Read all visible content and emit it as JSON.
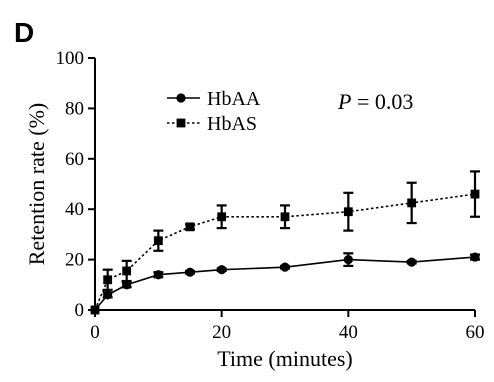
{
  "panel_label": "D",
  "annotation": {
    "italic": "P",
    "rest": " = 0.03"
  },
  "chart_data": {
    "type": "line",
    "title": "",
    "xlabel": "Time (minutes)",
    "ylabel": "Retention rate (%)",
    "xlim": [
      0,
      60
    ],
    "ylim": [
      0,
      100
    ],
    "xticks": [
      "0",
      "20",
      "40",
      "60"
    ],
    "yticks": [
      "0",
      "20",
      "40",
      "60",
      "80",
      "100"
    ],
    "grid": false,
    "legend_position": "top-left",
    "series": [
      {
        "name": "HbAA",
        "marker": "circle",
        "line_style": "solid",
        "color": "#000000",
        "x": [
          0,
          2,
          5,
          10,
          15,
          20,
          30,
          40,
          50,
          60
        ],
        "y": [
          0,
          6,
          10,
          14,
          15,
          16,
          17,
          20,
          19,
          21
        ],
        "error": [
          0,
          1,
          1,
          1,
          0.5,
          0.5,
          0.5,
          2.5,
          0.5,
          1
        ]
      },
      {
        "name": "HbAS",
        "marker": "square",
        "line_style": "dotted",
        "color": "#000000",
        "x": [
          0,
          2,
          5,
          10,
          15,
          20,
          30,
          40,
          50,
          60
        ],
        "y": [
          0,
          12,
          15.5,
          27.5,
          33,
          37,
          37,
          39,
          42.5,
          46
        ],
        "error": [
          0,
          4,
          4,
          4,
          1,
          4.5,
          4.5,
          7.5,
          8,
          9
        ]
      }
    ]
  }
}
